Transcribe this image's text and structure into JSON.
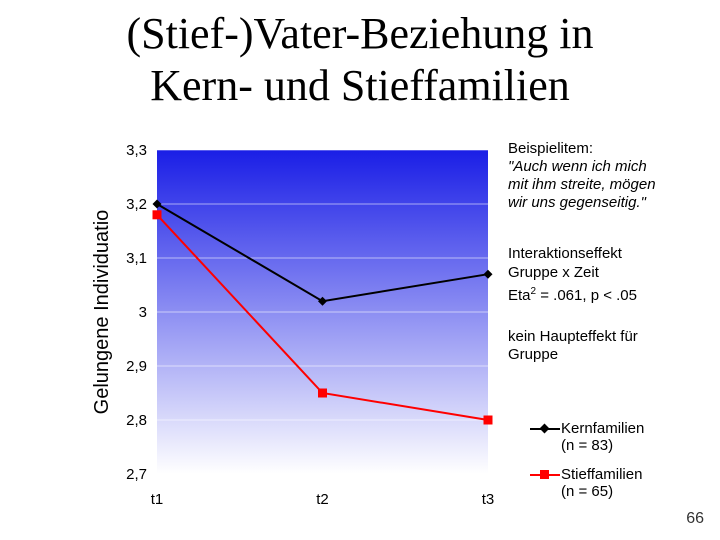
{
  "title": {
    "line1": "(Stief-)Vater-Beziehung in",
    "line2": "Kern- und Stieffamilien"
  },
  "chart_data": {
    "type": "line",
    "categories": [
      "t1",
      "t2",
      "t3"
    ],
    "series": [
      {
        "name": "Kernfamilien",
        "name_line2": "(n = 83)",
        "values": [
          3.2,
          3.02,
          3.07
        ],
        "color": "#000000",
        "marker": "diamond"
      },
      {
        "name": "Stieffamilien",
        "name_line2": "(n = 65)",
        "values": [
          3.18,
          2.85,
          2.8
        ],
        "color": "#ff0000",
        "marker": "square"
      }
    ],
    "ylabel": "Gelungene Individuatio",
    "ylim": [
      2.7,
      3.3
    ],
    "yticks": [
      "2,7",
      "2,8",
      "2,9",
      "3",
      "3,1",
      "3,2",
      "3,3"
    ],
    "grid": true,
    "plot_background": "blue-to-white gradient",
    "legend_position": "right"
  },
  "notes": {
    "example_heading": "Beispielitem:",
    "example_line1": "\"Auch wenn ich mich",
    "example_line2": "mit ihm streite, mögen",
    "example_line3": "wir uns gegenseitig.\"",
    "interaction_line1": "Interaktionseffekt",
    "interaction_line2": "Gruppe x Zeit",
    "interaction_line3_pre": "Eta",
    "interaction_line3_sup": "2",
    "interaction_line3_post": " = .061, p < .05",
    "main_effect_line1": "kein Haupteffekt für",
    "main_effect_line2": "Gruppe"
  },
  "page_number": "66"
}
